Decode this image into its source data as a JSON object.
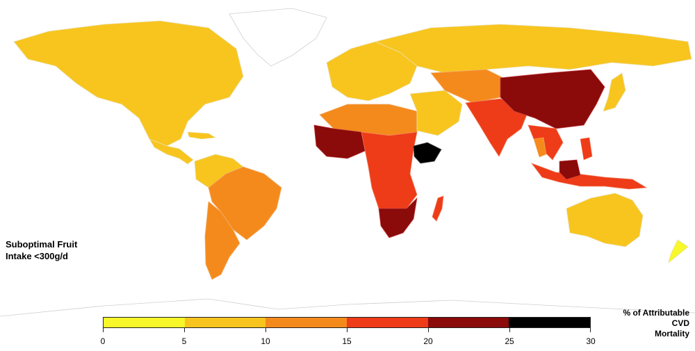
{
  "map": {
    "title": "Suboptimal Fruit\nIntake <300g/d",
    "legend_title": "% of Attributable\nCVD\nMortality",
    "legend": {
      "bins": [
        {
          "range": [
            0,
            5
          ],
          "color": "#f7f72a"
        },
        {
          "range": [
            5,
            10
          ],
          "color": "#f8c51e"
        },
        {
          "range": [
            10,
            15
          ],
          "color": "#f58a1c"
        },
        {
          "range": [
            15,
            20
          ],
          "color": "#ee3b18"
        },
        {
          "range": [
            20,
            25
          ],
          "color": "#8b0a0a"
        },
        {
          "range": [
            25,
            30
          ],
          "color": "#000000"
        }
      ],
      "tick_labels": [
        "0",
        "5",
        "10",
        "15",
        "20",
        "25",
        "30"
      ]
    },
    "colors": {
      "background": "#ffffff",
      "border": "#d8d8d8",
      "no_data": "#ffffff"
    },
    "regions": [
      {
        "name": "North America",
        "bin": "5-10",
        "color": "#f8c51e"
      },
      {
        "name": "Central America",
        "bin": "5-10",
        "color": "#f8c51e"
      },
      {
        "name": "Brazil",
        "bin": "10-15",
        "color": "#f58a1c"
      },
      {
        "name": "Southern South America",
        "bin": "10-15",
        "color": "#f58a1c"
      },
      {
        "name": "Europe",
        "bin": "5-10",
        "color": "#f8c51e"
      },
      {
        "name": "Russia",
        "bin": "5-10",
        "color": "#f8c51e"
      },
      {
        "name": "North Africa",
        "bin": "10-15",
        "color": "#f58a1c"
      },
      {
        "name": "West Africa",
        "bin": "20-25",
        "color": "#8b0a0a"
      },
      {
        "name": "Central/East Africa",
        "bin": "15-20",
        "color": "#ee3b18"
      },
      {
        "name": "Ethiopia",
        "bin": "25-30",
        "color": "#000000"
      },
      {
        "name": "Southern Africa",
        "bin": "20-25",
        "color": "#8b0a0a"
      },
      {
        "name": "Madagascar",
        "bin": "15-20",
        "color": "#ee3b18"
      },
      {
        "name": "Middle East",
        "bin": "5-10",
        "color": "#f8c51e"
      },
      {
        "name": "Central Asia",
        "bin": "10-15",
        "color": "#f58a1c"
      },
      {
        "name": "India",
        "bin": "15-20",
        "color": "#ee3b18"
      },
      {
        "name": "China",
        "bin": "20-25",
        "color": "#8b0a0a"
      },
      {
        "name": "Southeast Asia",
        "bin": "15-20",
        "color": "#ee3b18"
      },
      {
        "name": "Indonesia/PNG",
        "bin": "15-20",
        "color": "#ee3b18"
      },
      {
        "name": "Japan",
        "bin": "5-10",
        "color": "#f8c51e"
      },
      {
        "name": "Australia",
        "bin": "5-10",
        "color": "#f8c51e"
      },
      {
        "name": "New Zealand",
        "bin": "0-5",
        "color": "#f7f72a"
      }
    ]
  }
}
